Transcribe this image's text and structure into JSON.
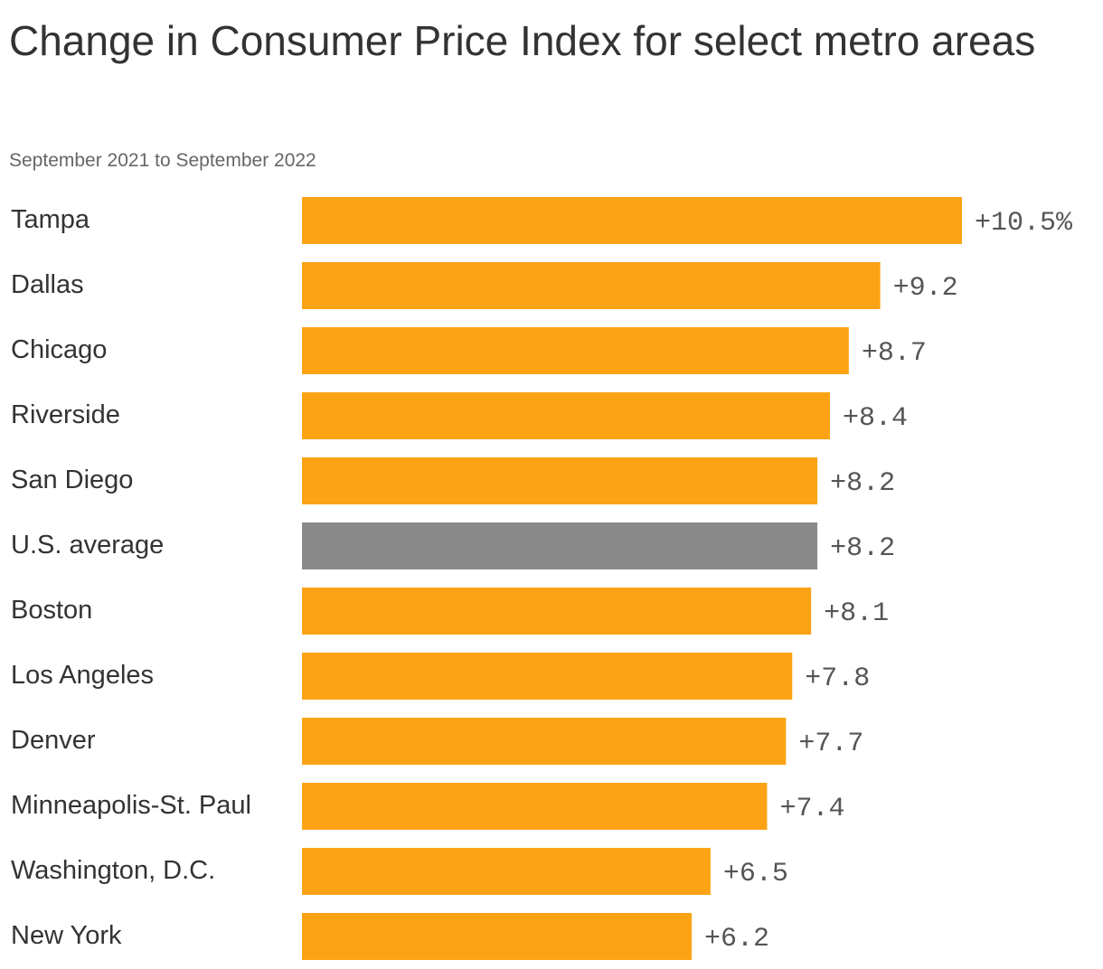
{
  "chart_data": {
    "type": "bar",
    "orientation": "horizontal",
    "title": "Change in Consumer Price Index for select metro areas",
    "subtitle": "September 2021 to September 2022",
    "categories": [
      "Tampa",
      "Dallas",
      "Chicago",
      "Riverside",
      "San Diego",
      "U.S. average",
      "Boston",
      "Los Angeles",
      "Denver",
      "Minneapolis-St. Paul",
      "Washington, D.C.",
      "New York"
    ],
    "values": [
      10.5,
      9.2,
      8.7,
      8.4,
      8.2,
      8.2,
      8.1,
      7.8,
      7.7,
      7.4,
      6.5,
      6.2
    ],
    "value_labels": [
      "+10.5%",
      "+9.2",
      "+8.7",
      "+8.4",
      "+8.2",
      "+8.2",
      "+8.1",
      "+7.8",
      "+7.7",
      "+7.4",
      "+6.5",
      "+6.2"
    ],
    "highlight_category": "U.S. average",
    "colors": {
      "bar": "#fca315",
      "highlight": "#8a8a8a"
    },
    "xlim": [
      0,
      10.5
    ],
    "grid": false,
    "legend": "none"
  }
}
